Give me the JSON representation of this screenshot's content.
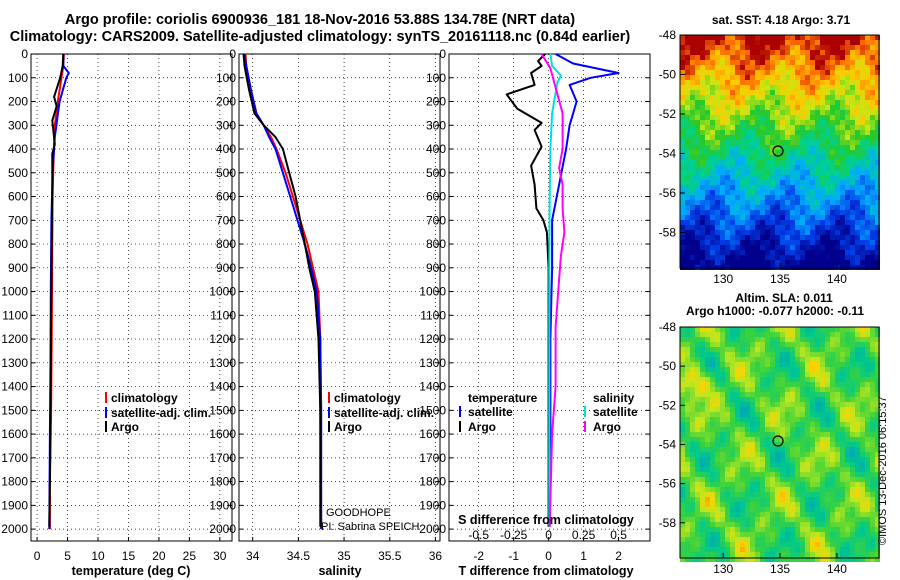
{
  "header": {
    "title_line1": "Argo profile: coriolis 6900936_181 18-Nov-2016 53.88S 134.78E (NRT data)",
    "title_line2": "Climatology: CARS2009. Satellite-adjusted climatology: synTS_20161118.nc (0.84d earlier)"
  },
  "colors": {
    "climatology": "#ff0000",
    "satellite": "#0000ff",
    "argo": "#000000",
    "salinity_satellite": "#00e0e0",
    "salinity_argo": "#ff00ff"
  },
  "chart_data": [
    {
      "type": "line",
      "panel": "temperature",
      "xlabel": "temperature (deg C)",
      "xticks": [
        "0",
        "5",
        "10",
        "15",
        "20",
        "25",
        "30"
      ],
      "xlim": [
        -1,
        32
      ],
      "yticks": [
        "0",
        "100",
        "200",
        "300",
        "400",
        "500",
        "600",
        "700",
        "800",
        "900",
        "1000",
        "1100",
        "1200",
        "1300",
        "1400",
        "1500",
        "1600",
        "1700",
        "1800",
        "1900",
        "2000"
      ],
      "ylim": [
        2050,
        0
      ],
      "legend": [
        "climatology",
        "satellite-adj. clim.",
        "Argo"
      ],
      "series": [
        {
          "key": "climatology",
          "x": [
            4.4,
            4.3,
            4.0,
            3.4,
            2.9,
            2.7,
            2.55,
            2.5,
            2.45,
            2.4,
            2.3,
            2.1,
            2.1
          ],
          "y": [
            0,
            50,
            100,
            200,
            300,
            450,
            600,
            800,
            1000,
            1200,
            1500,
            1800,
            2000
          ]
        },
        {
          "key": "satellite",
          "x": [
            4.3,
            4.3,
            5.2,
            4.8,
            3.7,
            2.9,
            2.55,
            2.35,
            2.25,
            2.2,
            2.1,
            2.05,
            2.0
          ],
          "y": [
            0,
            50,
            80,
            100,
            200,
            350,
            500,
            700,
            1000,
            1300,
            1600,
            1800,
            2000
          ]
        },
        {
          "key": "argo",
          "x": [
            4.3,
            4.2,
            3.8,
            2.8,
            3.2,
            2.5,
            2.9,
            2.5,
            2.5,
            2.4,
            2.3,
            2.2,
            2.1,
            2.0
          ],
          "y": [
            0,
            50,
            100,
            180,
            220,
            280,
            380,
            420,
            550,
            800,
            1100,
            1500,
            1800,
            1990
          ]
        }
      ]
    },
    {
      "type": "line",
      "panel": "salinity",
      "xlabel": "salinity",
      "xticks": [
        "34",
        "34.5",
        "35",
        "35.5",
        "36"
      ],
      "xlim": [
        33.85,
        36.05
      ],
      "yticks": [
        "0",
        "100",
        "200",
        "300",
        "400",
        "500",
        "600",
        "700",
        "800",
        "900",
        "1000",
        "1100",
        "1200",
        "1300",
        "1400",
        "1500",
        "1600",
        "1700",
        "1800",
        "1900",
        "2000"
      ],
      "ylim": [
        2050,
        0
      ],
      "legend": [
        "climatology",
        "satellite-adj. clim.",
        "Argo"
      ],
      "annotation": [
        "GOODHOPE",
        "PI: Sabrina SPEICH"
      ],
      "series": [
        {
          "key": "climatology",
          "x": [
            33.92,
            33.93,
            33.98,
            34.04,
            34.12,
            34.2,
            34.26,
            34.36,
            34.44,
            34.52,
            34.6,
            34.66,
            34.72,
            34.74,
            34.74,
            34.75
          ],
          "y": [
            0,
            50,
            150,
            250,
            300,
            350,
            400,
            500,
            600,
            700,
            800,
            900,
            1000,
            1200,
            1500,
            2000
          ]
        },
        {
          "key": "satellite",
          "x": [
            33.91,
            33.93,
            33.98,
            34.04,
            34.12,
            34.18,
            34.25,
            34.33,
            34.41,
            34.49,
            34.57,
            34.64,
            34.7,
            34.74,
            34.75,
            34.75
          ],
          "y": [
            0,
            50,
            150,
            250,
            300,
            350,
            400,
            500,
            600,
            700,
            800,
            900,
            1000,
            1200,
            1500,
            2000
          ]
        },
        {
          "key": "argo",
          "x": [
            33.9,
            33.91,
            33.96,
            34.02,
            34.12,
            34.25,
            34.33,
            34.4,
            34.47,
            34.52,
            34.57,
            34.62,
            34.68,
            34.72,
            34.74,
            34.74
          ],
          "y": [
            0,
            50,
            150,
            250,
            300,
            350,
            400,
            500,
            600,
            700,
            800,
            900,
            1000,
            1200,
            1500,
            1990
          ]
        }
      ]
    },
    {
      "type": "line",
      "panel": "T/S difference",
      "xlabel": "T difference from climatology",
      "xticks": [
        "-2",
        "-1",
        "0",
        "1",
        "2"
      ],
      "xlim": [
        -2.85,
        2.9
      ],
      "xlabel2": "S difference from climatology",
      "xticks2": [
        "-0.5",
        "-0.25",
        "0",
        "0.25",
        "0.5"
      ],
      "yticks": [
        "0",
        "100",
        "200",
        "300",
        "400",
        "500",
        "600",
        "700",
        "800",
        "900",
        "1000",
        "1100",
        "1200",
        "1300",
        "1400",
        "1500",
        "1600",
        "1700",
        "1800",
        "1900",
        "2000"
      ],
      "ylim": [
        2050,
        0
      ],
      "legend_temperature": [
        "temperature",
        "satellite",
        "Argo"
      ],
      "legend_salinity": [
        "salinity",
        "satellite",
        "Argo"
      ],
      "series": [
        {
          "key": "argo",
          "x": [
            -0.1,
            -0.3,
            -0.2,
            -0.5,
            -0.4,
            -1.2,
            -0.9,
            -0.2,
            -0.4,
            -0.2,
            -0.5,
            -0.4,
            -0.35,
            -0.15,
            -0.05,
            0,
            0,
            0,
            0
          ],
          "y": [
            0,
            30,
            50,
            80,
            130,
            170,
            230,
            290,
            320,
            390,
            470,
            550,
            650,
            700,
            750,
            900,
            1200,
            1500,
            1990
          ]
        },
        {
          "key": "satellite",
          "x": [
            0.2,
            0.7,
            2.0,
            1.2,
            0.6,
            0.8,
            0.6,
            0.5,
            0.3,
            0.1,
            0.1,
            0.05,
            0.05,
            0.03
          ],
          "y": [
            0,
            40,
            80,
            100,
            130,
            200,
            300,
            400,
            550,
            700,
            900,
            1200,
            1600,
            1990
          ]
        },
        {
          "key": "salinity_satellite",
          "x": [
            0.05,
            0.1,
            0.35,
            0.25,
            0.1,
            0.05,
            0.03,
            0.02,
            0.02,
            0.02
          ],
          "y": [
            0,
            50,
            90,
            120,
            250,
            400,
            600,
            900,
            1400,
            1990
          ]
        },
        {
          "key": "salinity_argo",
          "x": [
            -0.2,
            0.05,
            0.4,
            0.4,
            0.3,
            0.4,
            0.4,
            0.45,
            0.35,
            0.3,
            0.2,
            0.2,
            0.1,
            0.03
          ],
          "y": [
            0,
            60,
            250,
            400,
            480,
            550,
            650,
            750,
            850,
            950,
            1150,
            1400,
            1600,
            1990
          ]
        }
      ]
    }
  ],
  "maps": {
    "sst": {
      "title": "sat. SST: 4.18 Argo: 3.71",
      "yticks": [
        "-48",
        "-50",
        "-52",
        "-54",
        "-56",
        "-58"
      ],
      "xticks": [
        "130",
        "135",
        "140"
      ]
    },
    "sla": {
      "title_line1": "Altim. SLA: 0.011",
      "title_line2": "Argo h1000: -0.077 h2000: -0.11",
      "yticks": [
        "-48",
        "-50",
        "-52",
        "-54",
        "-56",
        "-58"
      ],
      "xticks": [
        "130",
        "135",
        "140"
      ]
    }
  },
  "footer": {
    "stamp": "©IMOS 13-Dec-2016 06:15:37"
  }
}
